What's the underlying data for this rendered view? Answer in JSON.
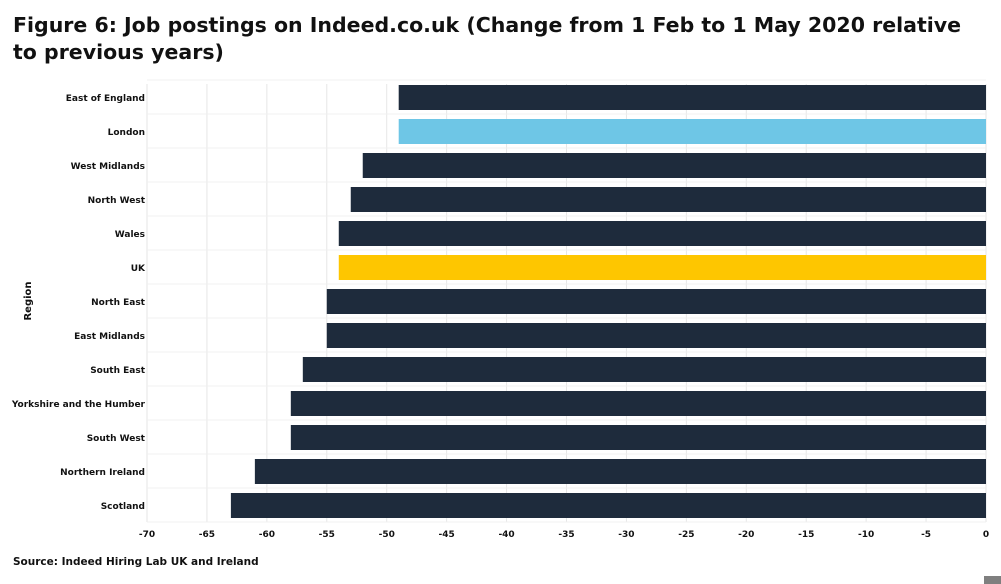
{
  "chart_data": {
    "type": "bar",
    "orientation": "horizontal",
    "title": "Figure 6: Job postings on Indeed.co.uk (Change from 1 Feb to 1 May 2020 relative to previous years)",
    "ylabel": "Region",
    "xlabel": "",
    "source": "Source: Indeed Hiring Lab UK and Ireland",
    "xlim": [
      -70,
      0
    ],
    "xticks": [
      -70,
      -65,
      -60,
      -55,
      -50,
      -45,
      -40,
      -35,
      -30,
      -25,
      -20,
      -15,
      -10,
      -5,
      0
    ],
    "grid": true,
    "categories": [
      "East of England",
      "London",
      "West Midlands",
      "North West",
      "Wales",
      "UK",
      "North East",
      "East Midlands",
      "South East",
      "Yorkshire and the Humber",
      "South West",
      "Northern Ireland",
      "Scotland"
    ],
    "values": [
      -49,
      -49,
      -52,
      -53,
      -54,
      -54,
      -55,
      -55,
      -57,
      -58,
      -58,
      -61,
      -63
    ],
    "colors": [
      "#1e2b3c",
      "#6ec6e6",
      "#1e2b3c",
      "#1e2b3c",
      "#1e2b3c",
      "#fec600",
      "#1e2b3c",
      "#1e2b3c",
      "#1e2b3c",
      "#1e2b3c",
      "#1e2b3c",
      "#1e2b3c",
      "#1e2b3c"
    ]
  }
}
